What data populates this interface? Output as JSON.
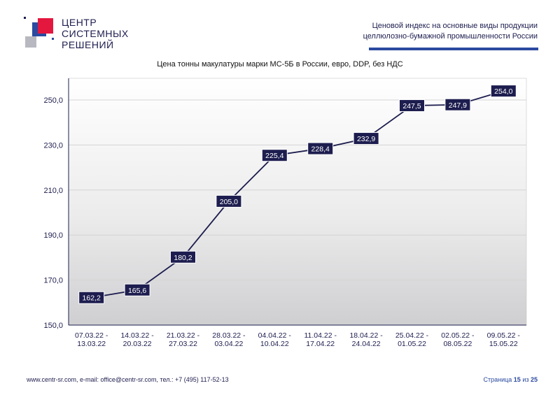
{
  "brand": {
    "name_lines": [
      "ЦЕНТР",
      "СИСТЕМНЫХ",
      "РЕШЕНИЙ"
    ],
    "colors": {
      "red": "#e4173f",
      "blue": "#2b4aa0",
      "gray": "#b8b8c0",
      "navy": "#1d1d4f"
    }
  },
  "header": {
    "title_line1": "Ценовой индекс на основные виды продукции",
    "title_line2": "целлюлозно-бумажной промышленности России"
  },
  "chart_data": {
    "type": "line",
    "title": "Цена тонны макулатуры марки МС-5Б в России, евро, DDP, без НДС",
    "categories": [
      [
        "07.03.22 -",
        "13.03.22"
      ],
      [
        "14.03.22 -",
        "20.03.22"
      ],
      [
        "21.03.22 -",
        "27.03.22"
      ],
      [
        "28.03.22 -",
        "03.04.22"
      ],
      [
        "04.04.22 -",
        "10.04.22"
      ],
      [
        "11.04.22 -",
        "17.04.22"
      ],
      [
        "18.04.22 -",
        "24.04.22"
      ],
      [
        "25.04.22 -",
        "01.05.22"
      ],
      [
        "02.05.22 -",
        "08.05.22"
      ],
      [
        "09.05.22 -",
        "15.05.22"
      ]
    ],
    "values": [
      162.2,
      165.6,
      180.2,
      205.0,
      225.4,
      228.4,
      232.9,
      247.5,
      247.9,
      254.0
    ],
    "data_labels": [
      "162,2",
      "165,6",
      "180,2",
      "205,0",
      "225,4",
      "228,4",
      "232,9",
      "247,5",
      "247,9",
      "254,0"
    ],
    "ylim": [
      150,
      260
    ],
    "yticks": [
      150,
      170,
      190,
      210,
      230,
      250
    ],
    "ytick_labels": [
      "150,0",
      "170,0",
      "190,0",
      "210,0",
      "230,0",
      "250,0"
    ],
    "grid": true,
    "line_color": "#1d1d4f",
    "label_bg": "#1d1d4f"
  },
  "footer": {
    "contacts": "www.centr-sr.com, e-mail: office@centr-sr.com, тел.: +7 (495) 117-52-13",
    "page_word": "Страница",
    "page_current": "15",
    "page_of": "из",
    "page_total": "25"
  }
}
